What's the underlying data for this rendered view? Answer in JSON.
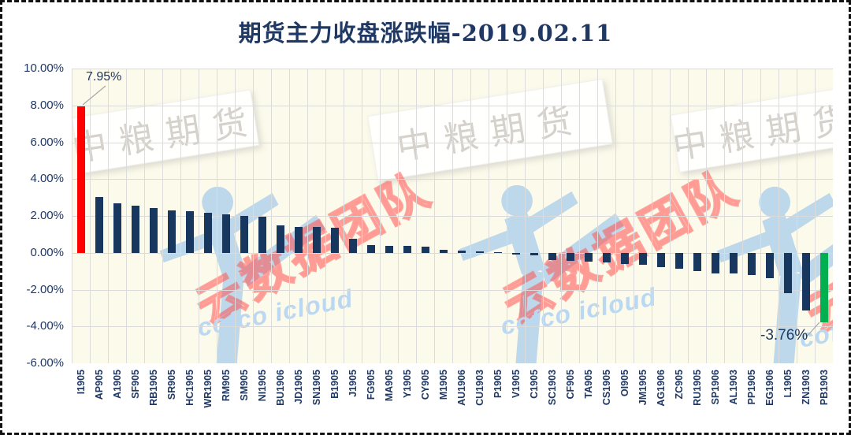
{
  "title": "期货主力收盘涨跌幅-2019.02.11",
  "chart_data": {
    "type": "bar",
    "title": "期货主力收盘涨跌幅-2019.02.11",
    "categories": [
      "I1905",
      "AP905",
      "A1905",
      "SF905",
      "RB1905",
      "SR905",
      "HC1905",
      "WR1905",
      "RM905",
      "SM905",
      "NI1905",
      "BU1906",
      "JD1905",
      "SN1905",
      "B1905",
      "J1905",
      "FG905",
      "MA905",
      "Y1905",
      "CY905",
      "M1905",
      "AU1906",
      "CU1903",
      "P1905",
      "V1905",
      "C1905",
      "SC1903",
      "CF905",
      "TA905",
      "CS1905",
      "OI905",
      "JM1905",
      "AG1906",
      "ZC905",
      "RU1905",
      "SP1906",
      "AL1903",
      "PP1905",
      "EG1906",
      "L1905",
      "ZN1903",
      "PB1903"
    ],
    "values": [
      7.95,
      3.05,
      2.67,
      2.57,
      2.42,
      2.32,
      2.28,
      2.16,
      2.1,
      1.99,
      1.94,
      1.49,
      1.42,
      1.4,
      1.38,
      0.77,
      0.4,
      0.39,
      0.38,
      0.34,
      0.16,
      0.11,
      0.06,
      0.02,
      -0.08,
      -0.15,
      -0.4,
      -0.42,
      -0.48,
      -0.53,
      -0.59,
      -0.66,
      -0.78,
      -0.86,
      -1.0,
      -1.11,
      -1.12,
      -1.21,
      -1.39,
      -2.19,
      -3.14,
      -3.76
    ],
    "ylabels": [
      "10.00%",
      "8.00%",
      "6.00%",
      "4.00%",
      "2.00%",
      "0.00%",
      "-2.00%",
      "-4.00%",
      "-6.00%"
    ],
    "ylim": [
      -6,
      10
    ],
    "ytick_step": 2,
    "grid": "on",
    "legend": "none",
    "bar_color_default": "#17375E",
    "bar_color_max": "#FF0000",
    "bar_color_min": "#00B050",
    "annotations": [
      {
        "text": "7.95%",
        "target": "I1905"
      },
      {
        "text": "-3.76%",
        "target": "PB1903"
      }
    ]
  },
  "watermarks": {
    "box_text": "中粮期货",
    "red_text": "云数据团队",
    "blue_text": "cofco icloud"
  },
  "colors": {
    "text": "#1F3864",
    "gridline": "#DADADA",
    "plot_bg": "#FCFAEA",
    "leader_line": "#A6A6A6"
  }
}
